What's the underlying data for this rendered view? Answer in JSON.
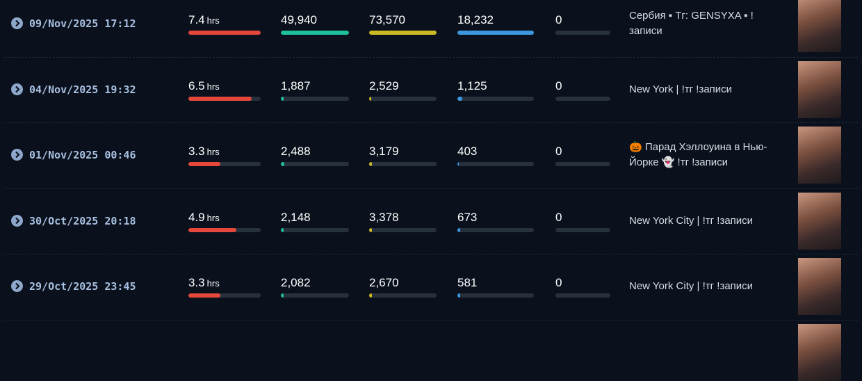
{
  "hours_unit": "hrs",
  "rows": [
    {
      "date": "09/Nov/2025 17:12",
      "hours": "7.4",
      "c1": "49,940",
      "c2": "73,570",
      "c3": "18,232",
      "c4": "0",
      "title": "Сербия ▪ Тг: GENSYXA ▪ !записи"
    },
    {
      "date": "04/Nov/2025 19:32",
      "hours": "6.5",
      "c1": "1,887",
      "c2": "2,529",
      "c3": "1,125",
      "c4": "0",
      "title": "New York | !тг !записи"
    },
    {
      "date": "01/Nov/2025 00:46",
      "hours": "3.3",
      "c1": "2,488",
      "c2": "3,179",
      "c3": "403",
      "c4": "0",
      "title": "🎃 Парад Хэллоуина в Нью-Йорке 👻 !тг !записи"
    },
    {
      "date": "30/Oct/2025 20:18",
      "hours": "4.9",
      "c1": "2,148",
      "c2": "3,378",
      "c3": "673",
      "c4": "0",
      "title": "New York City | !тг !записи"
    },
    {
      "date": "29/Oct/2025 23:45",
      "hours": "3.3",
      "c1": "2,082",
      "c2": "2,670",
      "c3": "581",
      "c4": "0",
      "title": "New York City | !тг !записи"
    }
  ]
}
